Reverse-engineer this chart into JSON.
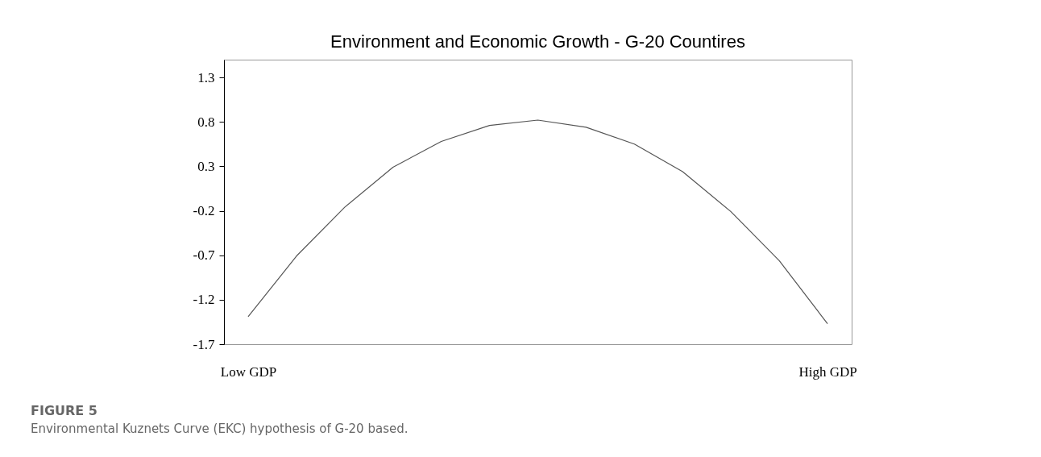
{
  "chart_data": {
    "type": "line",
    "title": "Environment and Economic Growth - G-20 Countires",
    "categories": [
      "Low GDP",
      null,
      null,
      null,
      null,
      null,
      null,
      null,
      null,
      null,
      null,
      null,
      "High GDP"
    ],
    "series": [
      {
        "color": "#555555",
        "values": [
          -1.39,
          -0.71,
          -0.16,
          0.29,
          0.58,
          0.76,
          0.82,
          0.74,
          0.55,
          0.24,
          -0.21,
          -0.76,
          -1.47
        ]
      }
    ],
    "ylim": [
      -1.7,
      1.5
    ],
    "yticks": [
      -1.7,
      -1.2,
      -0.7,
      -0.2,
      0.3,
      0.8,
      1.3
    ],
    "grid": false,
    "marker": "none",
    "line_style": "solid",
    "annotations": [
      "FIGURE 5",
      "Environmental Kuznets Curve (EKC) hypothesis of G-20 based."
    ]
  }
}
